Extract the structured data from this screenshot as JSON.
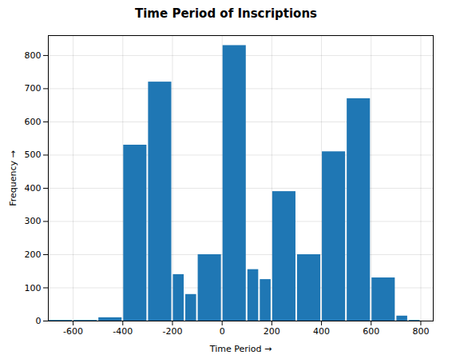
{
  "chart_data": {
    "type": "histogram",
    "title": "Time Period of Inscriptions",
    "xlabel": "Time Period",
    "ylabel": "Frequency",
    "bins": [
      -700,
      -600,
      -500,
      -400,
      -300,
      -200,
      -150,
      -100,
      0,
      100,
      150,
      200,
      300,
      400,
      500,
      600,
      700,
      750,
      800
    ],
    "values": [
      2,
      2,
      10,
      530,
      720,
      140,
      80,
      200,
      830,
      155,
      125,
      390,
      200,
      510,
      670,
      130,
      15,
      2
    ],
    "color": "#1f77b4",
    "xlim": [
      -700,
      850
    ],
    "ylim": [
      0,
      860
    ],
    "xticks": [
      -600,
      -400,
      -200,
      0,
      200,
      400,
      600,
      800
    ],
    "yticks": [
      0,
      100,
      200,
      300,
      400,
      500,
      600,
      700,
      800
    ],
    "grid": true
  }
}
